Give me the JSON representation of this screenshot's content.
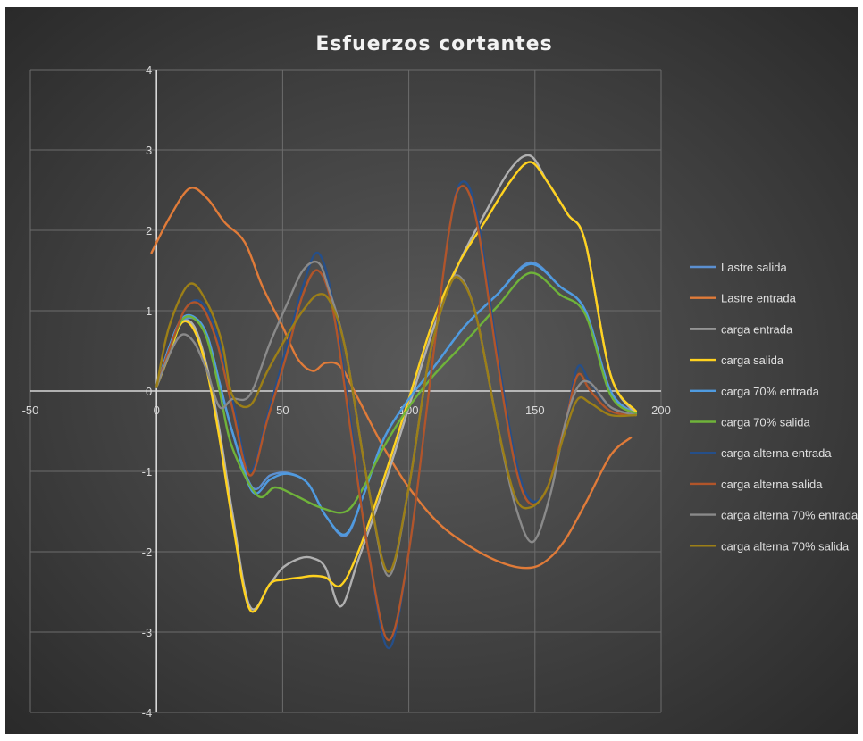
{
  "chart_data": {
    "type": "line",
    "title": "Esfuerzos cortantes",
    "xlabel": "",
    "ylabel": "",
    "xlim": [
      -50,
      200
    ],
    "ylim": [
      -4,
      4
    ],
    "x_ticks": [
      "-50",
      "0",
      "50",
      "100",
      "150",
      "200"
    ],
    "y_ticks": [
      "4",
      "3",
      "2",
      "1",
      "0",
      "-1",
      "-2",
      "-3",
      "-4"
    ],
    "grid": true,
    "legend_position": "right",
    "series": [
      {
        "name": "Lastre salida",
        "color": "#5b8fd0",
        "x": [
          0,
          5,
          10,
          15,
          20,
          25,
          30,
          38,
          45,
          52,
          60,
          67,
          75,
          82,
          90,
          100,
          110,
          122,
          135,
          148,
          160,
          170,
          180,
          190
        ],
        "y": [
          0.05,
          0.5,
          0.85,
          0.9,
          0.7,
          0.1,
          -0.5,
          -1.2,
          -1.05,
          -1.02,
          -1.15,
          -1.55,
          -1.8,
          -1.3,
          -0.6,
          -0.1,
          0.3,
          0.8,
          1.2,
          1.6,
          1.3,
          1.0,
          0.0,
          -0.28
        ]
      },
      {
        "name": "Lastre entrada",
        "color": "#e07b39",
        "x": [
          -2,
          5,
          13,
          20,
          27,
          35,
          42,
          50,
          56,
          62,
          67,
          73,
          80,
          90,
          100,
          112,
          125,
          138,
          148,
          155,
          162,
          170,
          180,
          188
        ],
        "y": [
          1.72,
          2.15,
          2.52,
          2.4,
          2.1,
          1.85,
          1.3,
          0.8,
          0.4,
          0.25,
          0.35,
          0.3,
          -0.1,
          -0.7,
          -1.2,
          -1.65,
          -1.95,
          -2.15,
          -2.2,
          -2.1,
          -1.85,
          -1.4,
          -0.8,
          -0.58
        ]
      },
      {
        "name": "carga entrada",
        "color": "#b0b0b0",
        "x": [
          0,
          5,
          10,
          15,
          20,
          25,
          30,
          37,
          45,
          50,
          57,
          62,
          67,
          73,
          80,
          90,
          100,
          110,
          120,
          130,
          140,
          148,
          155,
          163,
          170,
          180,
          190
        ],
        "y": [
          0.05,
          0.5,
          0.85,
          0.8,
          0.3,
          -0.5,
          -1.5,
          -2.68,
          -2.4,
          -2.2,
          -2.08,
          -2.08,
          -2.2,
          -2.68,
          -2.1,
          -1.2,
          -0.2,
          0.8,
          1.6,
          2.2,
          2.75,
          2.93,
          2.6,
          2.2,
          1.85,
          0.2,
          -0.28
        ]
      },
      {
        "name": "carga salida",
        "color": "#ffd21f",
        "x": [
          0,
          5,
          10,
          15,
          20,
          25,
          30,
          37,
          45,
          50,
          57,
          62,
          67,
          73,
          80,
          90,
          100,
          110,
          120,
          130,
          140,
          148,
          155,
          163,
          170,
          180,
          190
        ],
        "y": [
          0.05,
          0.45,
          0.85,
          0.75,
          0.25,
          -0.6,
          -1.6,
          -2.72,
          -2.4,
          -2.35,
          -2.32,
          -2.3,
          -2.32,
          -2.42,
          -2.0,
          -1.1,
          -0.1,
          0.9,
          1.6,
          2.1,
          2.6,
          2.85,
          2.6,
          2.2,
          1.85,
          0.2,
          -0.25
        ]
      },
      {
        "name": "carga 70% entrada",
        "color": "#4f9be0",
        "x": [
          0,
          5,
          10,
          15,
          20,
          25,
          30,
          38,
          45,
          52,
          60,
          67,
          75,
          82,
          90,
          100,
          110,
          122,
          135,
          148,
          160,
          170,
          180,
          190
        ],
        "y": [
          0.05,
          0.55,
          0.9,
          0.92,
          0.7,
          0.1,
          -0.5,
          -1.25,
          -1.1,
          -1.03,
          -1.15,
          -1.55,
          -1.78,
          -1.3,
          -0.6,
          -0.1,
          0.3,
          0.8,
          1.2,
          1.58,
          1.3,
          1.0,
          0.0,
          -0.3
        ]
      },
      {
        "name": "carga 70% salida",
        "color": "#6fb33a",
        "x": [
          0,
          5,
          10,
          15,
          20,
          25,
          30,
          40,
          47,
          55,
          65,
          75,
          82,
          90,
          100,
          110,
          122,
          135,
          148,
          160,
          170,
          180,
          190
        ],
        "y": [
          0.05,
          0.5,
          0.88,
          0.9,
          0.65,
          0.0,
          -0.7,
          -1.3,
          -1.2,
          -1.3,
          -1.45,
          -1.5,
          -1.2,
          -0.7,
          -0.2,
          0.2,
          0.6,
          1.05,
          1.47,
          1.2,
          0.95,
          -0.05,
          -0.28
        ]
      },
      {
        "name": "carga alterna entrada",
        "color": "#254f8a",
        "x": [
          0,
          6,
          12,
          18,
          24,
          30,
          37,
          44,
          52,
          58,
          64,
          70,
          77,
          84,
          92,
          100,
          108,
          116,
          121,
          127,
          135,
          142,
          148,
          155,
          162,
          167,
          172,
          180,
          190
        ],
        "y": [
          0.05,
          0.6,
          1.05,
          1.1,
          0.7,
          -0.1,
          -1.0,
          -0.3,
          0.6,
          1.3,
          1.72,
          1.1,
          -0.4,
          -2.0,
          -3.2,
          -2.0,
          0.0,
          2.0,
          2.6,
          2.2,
          0.5,
          -0.8,
          -1.35,
          -1.2,
          -0.4,
          0.3,
          0.1,
          -0.2,
          -0.3
        ]
      },
      {
        "name": "carga alterna salida",
        "color": "#b1552a",
        "x": [
          0,
          6,
          12,
          18,
          24,
          30,
          37,
          44,
          52,
          58,
          64,
          70,
          77,
          84,
          92,
          100,
          108,
          116,
          121,
          127,
          135,
          142,
          148,
          155,
          162,
          167,
          172,
          180,
          190
        ],
        "y": [
          0.05,
          0.6,
          1.05,
          1.05,
          0.6,
          -0.2,
          -1.05,
          -0.35,
          0.5,
          1.2,
          1.5,
          1.0,
          -0.5,
          -2.0,
          -3.1,
          -2.0,
          0.0,
          2.0,
          2.55,
          2.1,
          0.4,
          -0.9,
          -1.4,
          -1.2,
          -0.4,
          0.2,
          0.0,
          -0.25,
          -0.3
        ]
      },
      {
        "name": "carga alterna 70% entrada",
        "color": "#8a8a8a",
        "x": [
          0,
          5,
          10,
          15,
          20,
          25,
          30,
          37,
          45,
          52,
          58,
          64,
          68,
          75,
          84,
          92,
          100,
          108,
          116,
          121,
          127,
          135,
          142,
          149,
          156,
          162,
          167,
          172,
          180,
          190
        ],
        "y": [
          0.05,
          0.45,
          0.7,
          0.6,
          0.25,
          -0.2,
          -0.1,
          -0.05,
          0.6,
          1.1,
          1.5,
          1.6,
          1.3,
          0.5,
          -1.2,
          -2.3,
          -1.2,
          0.4,
          1.3,
          1.4,
          0.9,
          -0.4,
          -1.4,
          -1.88,
          -1.3,
          -0.4,
          0.05,
          0.1,
          -0.2,
          -0.3
        ]
      },
      {
        "name": "carga alterna 70% salida",
        "color": "#9c7f17",
        "x": [
          0,
          5,
          13,
          20,
          26,
          30,
          37,
          44,
          52,
          58,
          64,
          69,
          75,
          84,
          92,
          100,
          108,
          116,
          121,
          127,
          135,
          142,
          148,
          155,
          162,
          167,
          172,
          180,
          190
        ],
        "y": [
          0.05,
          0.8,
          1.33,
          1.1,
          0.6,
          -0.05,
          -0.18,
          0.25,
          0.7,
          1.0,
          1.2,
          1.1,
          0.5,
          -1.2,
          -2.25,
          -1.2,
          0.4,
          1.3,
          1.37,
          0.9,
          -0.4,
          -1.3,
          -1.45,
          -1.2,
          -0.5,
          -0.1,
          -0.15,
          -0.3,
          -0.3
        ]
      }
    ]
  }
}
